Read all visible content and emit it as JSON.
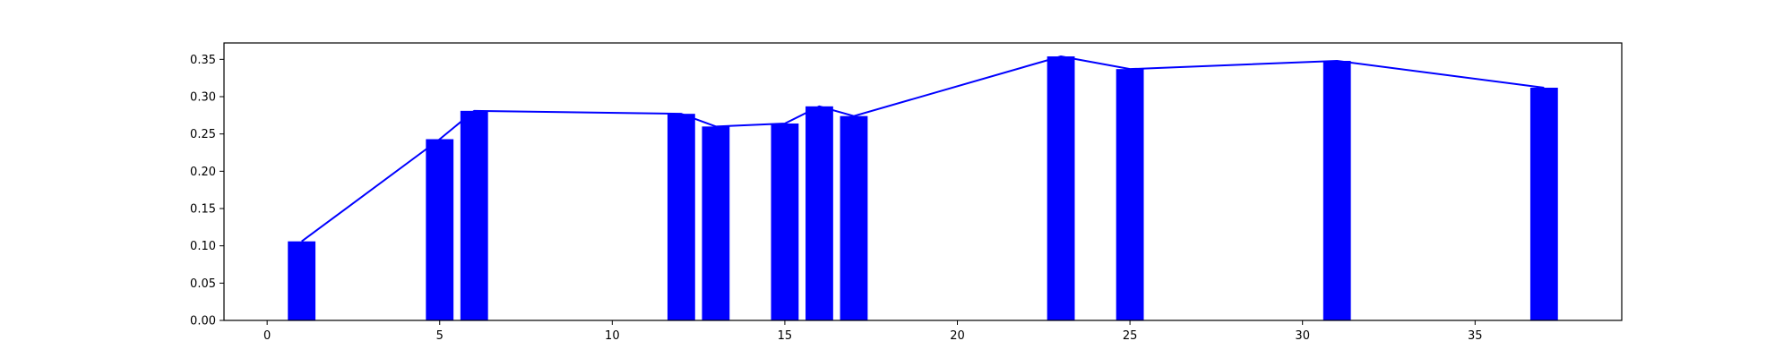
{
  "chart_data": {
    "type": "bar",
    "title": "",
    "xlabel": "",
    "ylabel": "",
    "xlim": [
      -1.25,
      39.25
    ],
    "ylim": [
      0,
      0.372
    ],
    "xticks": [
      0,
      5,
      10,
      15,
      20,
      25,
      30,
      35
    ],
    "yticks": [
      0.0,
      0.05,
      0.1,
      0.15,
      0.2,
      0.25,
      0.3,
      0.35
    ],
    "grid": false,
    "bar_width": 0.8,
    "series": [
      {
        "type": "bar",
        "x": [
          1,
          5,
          6,
          12,
          13,
          15,
          16,
          17,
          23,
          25,
          31,
          37
        ],
        "values": [
          0.106,
          0.243,
          0.281,
          0.277,
          0.26,
          0.264,
          0.287,
          0.274,
          0.354,
          0.337,
          0.348,
          0.312
        ]
      },
      {
        "type": "line",
        "x": [
          1,
          5,
          6,
          12,
          13,
          15,
          16,
          17,
          23,
          25,
          31,
          37
        ],
        "values": [
          0.106,
          0.243,
          0.281,
          0.277,
          0.26,
          0.264,
          0.287,
          0.274,
          0.354,
          0.337,
          0.348,
          0.312
        ]
      }
    ],
    "colors": {
      "bar": "#0000ff",
      "line": "#0000ff",
      "axes": "#000000"
    }
  }
}
